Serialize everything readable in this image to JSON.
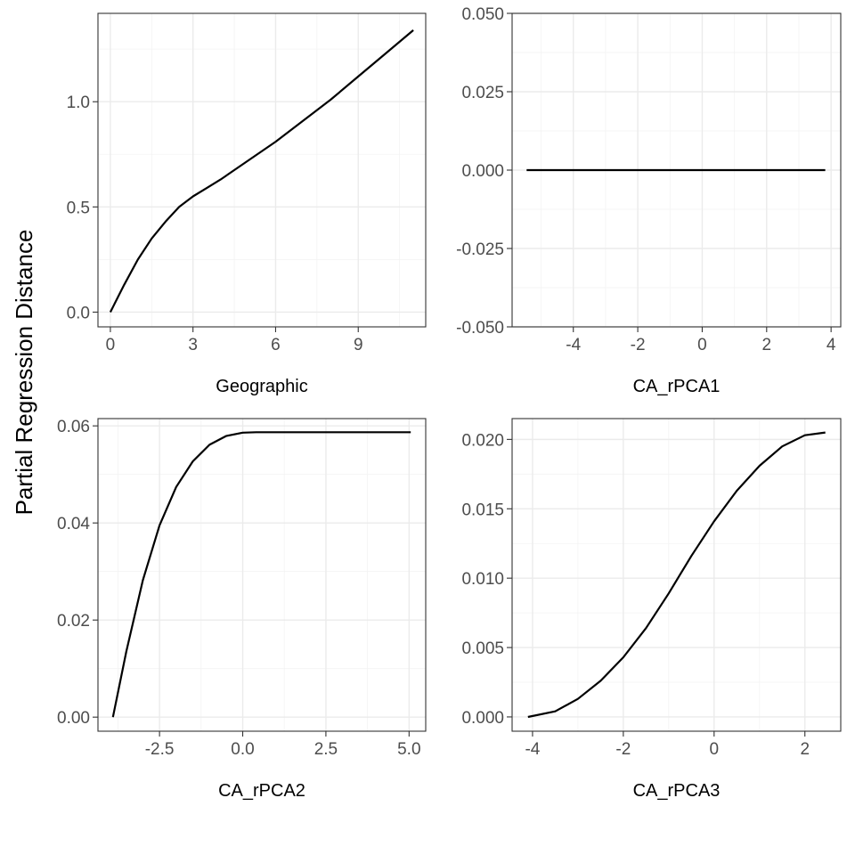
{
  "figure": {
    "ylabel": "Partial Regression Distance"
  },
  "chart_data": [
    {
      "type": "line",
      "xlabel": "Geographic",
      "xlim": [
        -0.45,
        11.45
      ],
      "ylim": [
        -0.07,
        1.42
      ],
      "xticks": [
        0,
        3,
        6,
        9
      ],
      "xtick_labels": [
        "0",
        "3",
        "6",
        "9"
      ],
      "yticks": [
        0.0,
        0.5,
        1.0
      ],
      "ytick_labels": [
        "0.0",
        "0.5",
        "1.0"
      ],
      "x": [
        0,
        0.5,
        1,
        1.5,
        2,
        2.5,
        3,
        3.5,
        4,
        5,
        6,
        7,
        8,
        9,
        10,
        11
      ],
      "y": [
        0.0,
        0.13,
        0.25,
        0.35,
        0.43,
        0.5,
        0.55,
        0.59,
        0.63,
        0.72,
        0.81,
        0.91,
        1.01,
        1.12,
        1.23,
        1.34
      ]
    },
    {
      "type": "line",
      "xlabel": "CA_rPCA1",
      "xlim": [
        -5.9,
        4.3
      ],
      "ylim": [
        -0.05,
        0.05
      ],
      "xticks": [
        -4,
        -2,
        0,
        2,
        4
      ],
      "xtick_labels": [
        "-4",
        "-2",
        "0",
        "2",
        "4"
      ],
      "yticks": [
        -0.05,
        -0.025,
        0.0,
        0.025,
        0.05
      ],
      "ytick_labels": [
        "-0.050",
        "-0.025",
        "0.000",
        "0.025",
        "0.050"
      ],
      "x": [
        -5.45,
        3.82
      ],
      "y": [
        0.0,
        0.0
      ]
    },
    {
      "type": "line",
      "xlabel": "CA_rPCA2",
      "xlim": [
        -4.35,
        5.5
      ],
      "ylim": [
        -0.0029,
        0.0615
      ],
      "xticks": [
        -2.5,
        0.0,
        2.5,
        5.0
      ],
      "xtick_labels": [
        "-2.5",
        "0.0",
        "2.5",
        "5.0"
      ],
      "yticks": [
        0.0,
        0.02,
        0.04,
        0.06
      ],
      "ytick_labels": [
        "0.00",
        "0.02",
        "0.04",
        "0.06"
      ],
      "x": [
        -3.9,
        -3.5,
        -3.0,
        -2.5,
        -2.0,
        -1.5,
        -1.0,
        -0.5,
        0.0,
        0.4,
        1.0,
        2.0,
        3.0,
        4.0,
        5.05
      ],
      "y": [
        0.0,
        0.0135,
        0.0282,
        0.0395,
        0.0474,
        0.0527,
        0.0561,
        0.0579,
        0.0586,
        0.0587,
        0.0587,
        0.0587,
        0.0587,
        0.0587,
        0.0587
      ]
    },
    {
      "type": "line",
      "xlabel": "CA_rPCA3",
      "xlim": [
        -4.45,
        2.79
      ],
      "ylim": [
        -0.00103,
        0.0215
      ],
      "xticks": [
        -4,
        -2,
        0,
        2
      ],
      "xtick_labels": [
        "-4",
        "-2",
        "0",
        "2"
      ],
      "yticks": [
        0.0,
        0.005,
        0.01,
        0.015,
        0.02
      ],
      "ytick_labels": [
        "0.000",
        "0.005",
        "0.010",
        "0.015",
        "0.020"
      ],
      "x": [
        -4.1,
        -3.5,
        -3.0,
        -2.5,
        -2.0,
        -1.5,
        -1.0,
        -0.5,
        0.0,
        0.5,
        1.0,
        1.5,
        2.0,
        2.45
      ],
      "y": [
        0.0,
        0.0004,
        0.0013,
        0.0026,
        0.0043,
        0.0064,
        0.0089,
        0.0116,
        0.0141,
        0.0163,
        0.0181,
        0.0195,
        0.0203,
        0.0205
      ]
    }
  ]
}
